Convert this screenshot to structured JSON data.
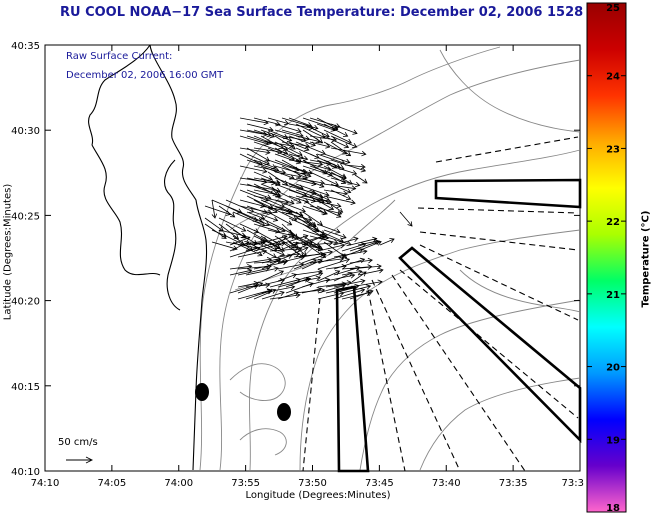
{
  "chart_data": {
    "type": "map",
    "title": "RU COOL  NOAA−17  Sea Surface Temperature:  December 02, 2006 1528 GMT",
    "overlay_lines": [
      "Raw Surface Current:",
      "December 02, 2006 16:00 GMT"
    ],
    "xlabel": "Longitude (Degrees:Minutes)",
    "ylabel": "Latitude (Degrees:Minutes)",
    "x_ticks": [
      "74:10",
      "74:05",
      "74:00",
      "73:55",
      "73:50",
      "73:45",
      "73:40",
      "73:35",
      "73:3"
    ],
    "y_ticks": [
      "40:10",
      "40:15",
      "40:20",
      "40:25",
      "40:30",
      "40:35"
    ],
    "scale_label": "50 cm/s",
    "colorbar": {
      "label": "Temperature (°C)",
      "range": [
        18,
        25
      ],
      "ticks": [
        "18",
        "19",
        "20",
        "21",
        "22",
        "23",
        "24",
        "25"
      ]
    },
    "colors": {
      "title": "#1a1a9a",
      "colorbar_stops": [
        "#ff66cc",
        "#6600cc",
        "#0000ff",
        "#0099ff",
        "#00ffff",
        "#00ff66",
        "#aaff00",
        "#ffff00",
        "#ffaa00",
        "#ff3300",
        "#cc0000",
        "#990000"
      ]
    }
  }
}
